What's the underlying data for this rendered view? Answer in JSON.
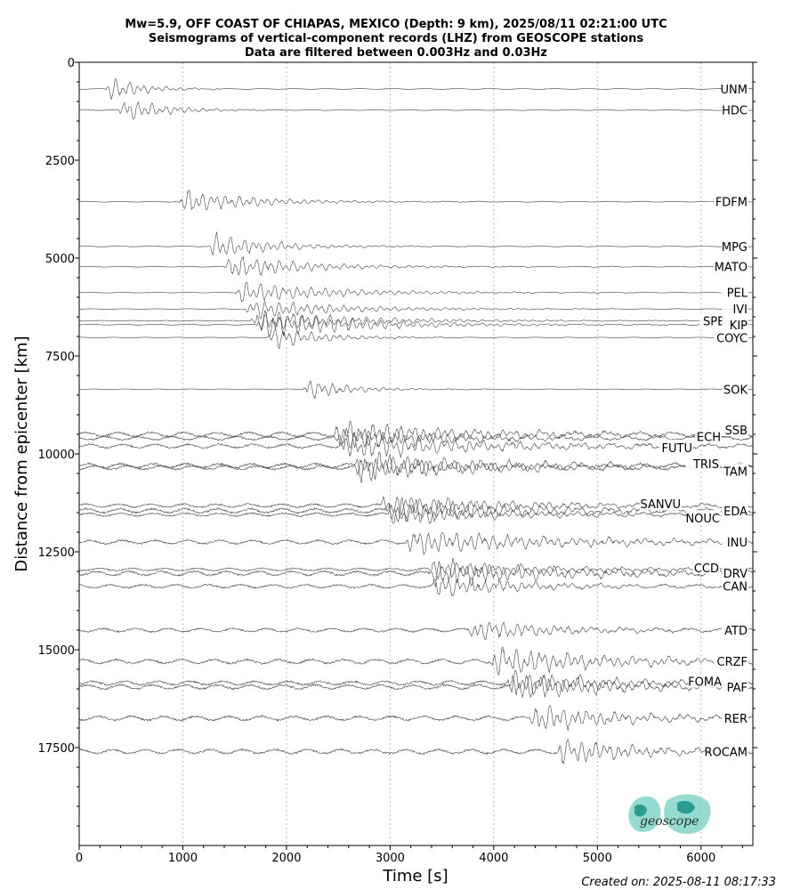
{
  "chart_data": {
    "type": "line",
    "title_lines": [
      "Mw=5.9, OFF COAST OF CHIAPAS, MEXICO (Depth: 9 km), 2025/08/11 02:21:00 UTC",
      "Seismograms of vertical-component records (LHZ) from GEOSCOPE stations",
      "Data are filtered between 0.003Hz and 0.03Hz"
    ],
    "xlabel": "Time [s]",
    "ylabel": "Distance from epicenter [km]",
    "xlim": [
      0,
      6500
    ],
    "ylim": [
      20000,
      0
    ],
    "xticks": [
      0,
      1000,
      2000,
      3000,
      4000,
      5000,
      6000
    ],
    "yticks": [
      0,
      2500,
      5000,
      7500,
      10000,
      12500,
      15000,
      17500
    ],
    "grid": "vertical dotted",
    "stations": [
      {
        "name": "UNM",
        "distance": 680,
        "arrival": 240,
        "amp": 1.0,
        "dur": 700
      },
      {
        "name": "HDC",
        "distance": 1220,
        "arrival": 380,
        "amp": 0.9,
        "dur": 900
      },
      {
        "name": "FDFM",
        "distance": 3560,
        "arrival": 950,
        "amp": 0.9,
        "dur": 1500
      },
      {
        "name": "MPG",
        "distance": 4700,
        "arrival": 1250,
        "amp": 1.0,
        "dur": 1200
      },
      {
        "name": "MATO",
        "distance": 5220,
        "arrival": 1400,
        "amp": 0.9,
        "dur": 1600
      },
      {
        "name": "PEL",
        "distance": 5880,
        "arrival": 1500,
        "amp": 0.8,
        "dur": 2000
      },
      {
        "name": "IVI",
        "distance": 6300,
        "arrival": 1600,
        "amp": 0.7,
        "dur": 2000
      },
      {
        "name": "SPB",
        "distance": 6600,
        "arrival": 1650,
        "amp": 0.8,
        "dur": 2200
      },
      {
        "name": "KIP",
        "distance": 6700,
        "arrival": 1700,
        "amp": 1.0,
        "dur": 2200
      },
      {
        "name": "COYC",
        "distance": 7030,
        "arrival": 1800,
        "amp": 0.9,
        "dur": 1000
      },
      {
        "name": "SOK",
        "distance": 8350,
        "arrival": 2150,
        "amp": 0.8,
        "dur": 900
      },
      {
        "name": "SSB",
        "distance": 9500,
        "arrival": 2450,
        "amp": 1.0,
        "dur": 2500
      },
      {
        "name": "ECH",
        "distance": 9600,
        "arrival": 2450,
        "amp": 0.8,
        "dur": 2500
      },
      {
        "name": "FUTU",
        "distance": 9800,
        "arrival": 2500,
        "amp": 0.9,
        "dur": 3000
      },
      {
        "name": "TRIS",
        "distance": 10300,
        "arrival": 2650,
        "amp": 1.0,
        "dur": 2500
      },
      {
        "name": "TAM",
        "distance": 10350,
        "arrival": 2650,
        "amp": 0.9,
        "dur": 2500
      },
      {
        "name": "SANVU",
        "distance": 11320,
        "arrival": 2900,
        "amp": 0.8,
        "dur": 2500
      },
      {
        "name": "EDA",
        "distance": 11450,
        "arrival": 2950,
        "amp": 1.0,
        "dur": 2400
      },
      {
        "name": "NOUC",
        "distance": 11550,
        "arrival": 2950,
        "amp": 0.7,
        "dur": 2400
      },
      {
        "name": "INU",
        "distance": 12250,
        "arrival": 3150,
        "amp": 0.9,
        "dur": 3000
      },
      {
        "name": "CCD",
        "distance": 12950,
        "arrival": 3350,
        "amp": 0.6,
        "dur": 2500
      },
      {
        "name": "DRV",
        "distance": 13050,
        "arrival": 3380,
        "amp": 1.0,
        "dur": 2500
      },
      {
        "name": "CAN",
        "distance": 13380,
        "arrival": 3400,
        "amp": 0.8,
        "dur": 1800
      },
      {
        "name": "ATD",
        "distance": 14500,
        "arrival": 3750,
        "amp": 0.8,
        "dur": 1800
      },
      {
        "name": "CRZF",
        "distance": 15300,
        "arrival": 3950,
        "amp": 1.0,
        "dur": 2500
      },
      {
        "name": "FOMA",
        "distance": 15850,
        "arrival": 4100,
        "amp": 0.9,
        "dur": 2000
      },
      {
        "name": "PAF",
        "distance": 15950,
        "arrival": 4150,
        "amp": 1.0,
        "dur": 2000
      },
      {
        "name": "RER",
        "distance": 16750,
        "arrival": 4350,
        "amp": 1.0,
        "dur": 1800
      },
      {
        "name": "ROCAM",
        "distance": 17600,
        "arrival": 4600,
        "amp": 1.0,
        "dur": 1600
      }
    ]
  },
  "logo": {
    "text": "geoscope",
    "color": "#2a9d8f"
  },
  "footer": {
    "created": "Created on: 2025-08-11 08:17:33"
  }
}
